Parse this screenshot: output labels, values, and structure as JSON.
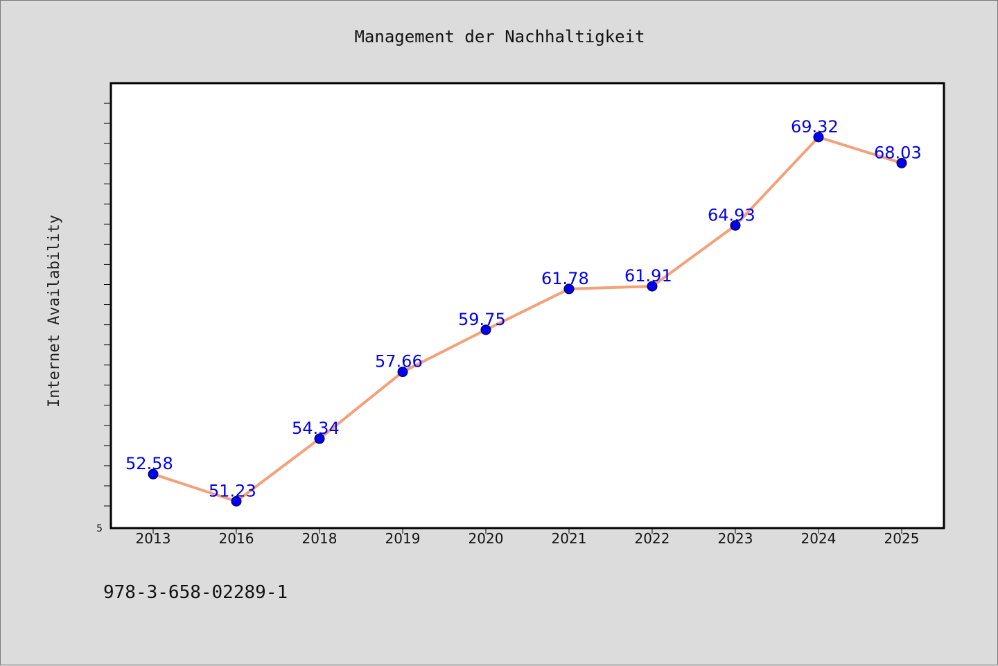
{
  "chart_data": {
    "type": "line",
    "title": "Management der Nachhaltigkeit",
    "xlabel": "",
    "ylabel": "Internet Availability",
    "categories": [
      "2013",
      "2016",
      "2018",
      "2019",
      "2020",
      "2021",
      "2022",
      "2023",
      "2024",
      "2025"
    ],
    "series": [
      {
        "values": [
          52.58,
          51.23,
          54.34,
          57.66,
          59.75,
          61.78,
          61.91,
          64.93,
          69.32,
          68.03
        ]
      }
    ],
    "value_labels": [
      "52.58",
      "51.23",
      "54.34",
      "57.66",
      "59.75",
      "61.78",
      "61.91",
      "64.93",
      "69.32",
      "68.03"
    ],
    "y_tick_label": "5",
    "ylim": [
      49.9,
      72.0
    ],
    "y_minor_tick_step": 1,
    "grid": false,
    "legend": "none",
    "colors": {
      "line": "#f4a07a",
      "marker": "#0000ee",
      "data_label": "#0000ee",
      "plot_bg": "#ffffff",
      "page_bg": "#dcdcdc"
    }
  },
  "footer": {
    "isbn": "978-3-658-02289-1"
  }
}
